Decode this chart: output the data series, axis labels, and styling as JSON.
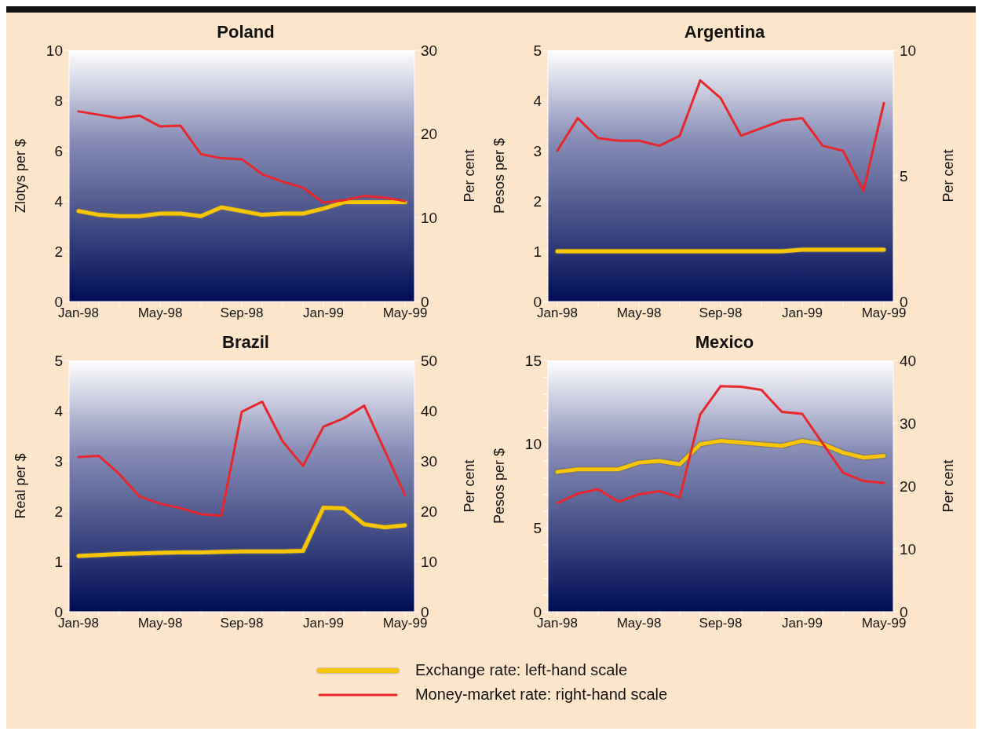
{
  "chart_data": [
    {
      "type": "line",
      "title": "Poland",
      "ylabel": "Zlotys per $",
      "y2label": "Per cent",
      "legend": "bottom",
      "categories": [
        "Jan-98",
        null,
        null,
        null,
        "May-98",
        null,
        null,
        null,
        "Sep-98",
        null,
        null,
        null,
        "Jan-99",
        null,
        null,
        null,
        "May-99"
      ],
      "ylim": [
        0,
        10
      ],
      "yticks": [
        0,
        2,
        4,
        6,
        8,
        10
      ],
      "y2lim": [
        0,
        30
      ],
      "y2ticks": [
        0,
        10,
        20,
        30
      ],
      "series": [
        {
          "name": "Exchange rate: left-hand scale",
          "color": "#f7c600",
          "values": [
            3.6,
            3.45,
            3.4,
            3.4,
            3.5,
            3.5,
            3.4,
            3.75,
            3.6,
            3.45,
            3.5,
            3.5,
            3.7,
            3.95,
            3.95,
            3.95,
            3.95
          ]
        },
        {
          "name": "Money-market rate: right-hand scale",
          "color": "#e8262b",
          "axis": "y2",
          "values": [
            22.7,
            22.3,
            21.9,
            22.2,
            20.9,
            21.0,
            17.6,
            17.1,
            17.0,
            15.2,
            14.3,
            13.6,
            11.8,
            12.1,
            12.6,
            12.4,
            12.0
          ]
        }
      ]
    },
    {
      "type": "line",
      "title": "Argentina",
      "ylabel": "Pesos per $",
      "y2label": "Per cent",
      "categories": [
        "Jan-98",
        null,
        null,
        null,
        "May-98",
        null,
        null,
        null,
        "Sep-98",
        null,
        null,
        null,
        "Jan-99",
        null,
        null,
        null,
        "May-99"
      ],
      "ylim": [
        0,
        5
      ],
      "yticks": [
        0,
        1,
        2,
        3,
        4,
        5
      ],
      "y2lim": [
        0,
        10
      ],
      "y2ticks": [
        0,
        5,
        10
      ],
      "series": [
        {
          "color": "#f7c600",
          "values": [
            1,
            1,
            1,
            1,
            1,
            1,
            1,
            1,
            1,
            1,
            1,
            1,
            1.03,
            1.03,
            1.03,
            1.03,
            1.03
          ]
        },
        {
          "color": "#e8262b",
          "axis": "y2",
          "values": [
            6.0,
            7.3,
            6.5,
            6.4,
            6.4,
            6.2,
            6.6,
            8.8,
            8.1,
            6.6,
            6.9,
            7.2,
            7.3,
            6.2,
            6.0,
            4.4,
            7.9
          ]
        }
      ]
    },
    {
      "type": "line",
      "title": "Brazil",
      "ylabel": "Real per $",
      "y2label": "Per cent",
      "categories": [
        "Jan-98",
        null,
        null,
        null,
        "May-98",
        null,
        null,
        null,
        "Sep-98",
        null,
        null,
        null,
        "Jan-99",
        null,
        null,
        null,
        "May-99"
      ],
      "ylim": [
        0,
        5
      ],
      "yticks": [
        0,
        1,
        2,
        3,
        4,
        5
      ],
      "y2lim": [
        0,
        50
      ],
      "y2ticks": [
        0,
        10,
        20,
        30,
        40,
        50
      ],
      "series": [
        {
          "color": "#f7c600",
          "values": [
            1.11,
            1.13,
            1.15,
            1.16,
            1.17,
            1.18,
            1.18,
            1.19,
            1.2,
            1.2,
            1.2,
            1.21,
            2.07,
            2.06,
            1.74,
            1.68,
            1.72
          ]
        },
        {
          "color": "#e8262b",
          "axis": "y2",
          "values": [
            30.8,
            31.0,
            27.4,
            22.9,
            21.5,
            20.6,
            19.4,
            19.1,
            39.8,
            41.8,
            33.9,
            29.0,
            36.8,
            38.5,
            41.0,
            32.1,
            23.2
          ]
        }
      ]
    },
    {
      "type": "line",
      "title": "Mexico",
      "ylabel": "Pesos per $",
      "y2label": "Per cent",
      "categories": [
        "Jan-98",
        null,
        null,
        null,
        "May-98",
        null,
        null,
        null,
        "Sep-98",
        null,
        null,
        null,
        "Jan-99",
        null,
        null,
        null,
        "May-99"
      ],
      "ylim": [
        0,
        15
      ],
      "yticks": [
        0,
        {
          "value": 1,
          "label": null
        },
        {
          "value": 2,
          "label": null
        },
        {
          "value": 3,
          "label": null
        },
        {
          "value": 4,
          "label": null
        },
        5,
        {
          "value": 6,
          "label": null
        },
        {
          "value": 7,
          "label": null
        },
        {
          "value": 8,
          "label": null
        },
        {
          "value": 9,
          "label": null
        },
        10,
        {
          "value": 11,
          "label": null
        },
        {
          "value": 12,
          "label": null
        },
        {
          "value": 13,
          "label": null
        },
        {
          "value": 14,
          "label": null
        },
        15
      ],
      "y2lim": [
        0,
        40
      ],
      "y2ticks": [
        0,
        10,
        20,
        30,
        40
      ],
      "series": [
        {
          "color": "#f7c600",
          "values": [
            8.35,
            8.5,
            8.5,
            8.5,
            8.9,
            9.0,
            8.8,
            10.0,
            10.2,
            10.1,
            10.0,
            9.9,
            10.2,
            10.0,
            9.5,
            9.2,
            9.3
          ]
        },
        {
          "color": "#e8262b",
          "axis": "y2",
          "values": [
            17.3,
            18.8,
            19.5,
            17.5,
            18.7,
            19.2,
            18.2,
            31.4,
            35.9,
            35.8,
            35.3,
            31.8,
            31.5,
            26.8,
            22.1,
            20.8,
            20.5
          ]
        }
      ]
    }
  ]
}
